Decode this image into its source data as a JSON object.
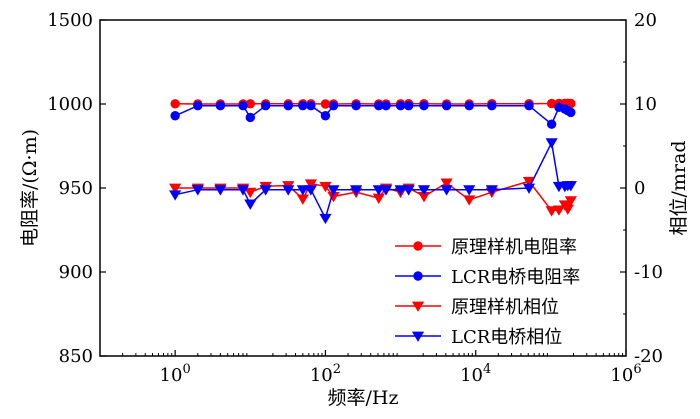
{
  "chart_data": {
    "type": "line",
    "x_scale": "log",
    "xlim": [
      0.1,
      1000000
    ],
    "ylim": [
      850,
      1500
    ],
    "y2lim": [
      -20,
      20
    ],
    "xlabel": "频率/Hz",
    "ylabel": "电阻率/(Ω·m)",
    "y2label": "相位/mrad",
    "x_ticks": [
      {
        "value": 1,
        "base": "10",
        "exp": "0"
      },
      {
        "value": 100,
        "base": "10",
        "exp": "2"
      },
      {
        "value": 10000,
        "base": "10",
        "exp": "4"
      },
      {
        "value": 1000000,
        "base": "10",
        "exp": "6"
      }
    ],
    "y_ticks": [
      "850",
      "900",
      "950",
      "1000",
      "1500"
    ],
    "y2_ticks": [
      "-20",
      "-10",
      "0",
      "10",
      "20"
    ],
    "legend_position": "bottom-right",
    "grid": false,
    "series": [
      {
        "name": "原理样机电阻率",
        "axis": "left",
        "color": "#ff0000",
        "marker": "circle",
        "x": [
          1,
          2,
          4,
          8,
          10,
          16,
          32,
          50,
          64,
          100,
          128,
          256,
          512,
          640,
          1000,
          1280,
          2048,
          4096,
          8192,
          16384,
          51200,
          102400,
          128000,
          153600,
          168000,
          184320
        ],
        "y": [
          1001,
          1000,
          1000,
          1000,
          1001,
          1001,
          1001,
          1001,
          1001,
          1000,
          1000,
          1001,
          1000,
          1000,
          1001,
          1002,
          1002,
          1000,
          1000,
          1002,
          1002,
          1003,
          1003,
          1004,
          1004,
          1003
        ]
      },
      {
        "name": "LCR电桥电阻率",
        "axis": "left",
        "color": "#0000ff",
        "marker": "circle",
        "x": [
          1,
          2,
          4,
          8,
          10,
          16,
          32,
          50,
          64,
          100,
          128,
          256,
          512,
          640,
          1000,
          1280,
          2048,
          4096,
          8192,
          16384,
          51200,
          102400,
          128000,
          153600,
          168000,
          184320
        ],
        "y": [
          993,
          999,
          999,
          999,
          992,
          999,
          999,
          999,
          999,
          993,
          999,
          999,
          999,
          999,
          999,
          999,
          999,
          999,
          999,
          999,
          999,
          988,
          998,
          997,
          996,
          995
        ]
      },
      {
        "name": "原理样机相位",
        "axis": "right",
        "color": "#ff0000",
        "marker": "triangle-down",
        "x": [
          1,
          2,
          4,
          8,
          10,
          16,
          32,
          50,
          64,
          100,
          128,
          256,
          512,
          640,
          1000,
          1280,
          2048,
          4096,
          8192,
          16384,
          51200,
          102400,
          128000,
          153600,
          168000,
          184320
        ],
        "y": [
          0,
          0,
          0,
          0,
          -0.5,
          0.2,
          0.3,
          -1.3,
          0.5,
          0.2,
          -1,
          -0.5,
          -1.2,
          0,
          -0.5,
          0,
          -1,
          0.6,
          -1.4,
          -0.5,
          0.8,
          -2.7,
          -2.6,
          -2,
          -2.5,
          -1.5
        ]
      },
      {
        "name": "LCR电桥相位",
        "axis": "right",
        "color": "#0000ff",
        "marker": "triangle-down",
        "x": [
          1,
          2,
          4,
          8,
          10,
          16,
          32,
          50,
          64,
          100,
          128,
          256,
          512,
          640,
          1000,
          1280,
          2048,
          4096,
          8192,
          16384,
          51200,
          102400,
          128000,
          153600,
          168000,
          184320
        ],
        "y": [
          -0.8,
          -0.2,
          -0.2,
          -0.2,
          -1.9,
          -0.2,
          -0.2,
          -0.2,
          -0.2,
          -3.6,
          -0.2,
          -0.2,
          -0.2,
          -0.2,
          -0.2,
          -0.2,
          -0.2,
          -0.2,
          -0.2,
          -0.2,
          0,
          5.4,
          0.2,
          0.2,
          0.3,
          0.3
        ]
      }
    ]
  }
}
